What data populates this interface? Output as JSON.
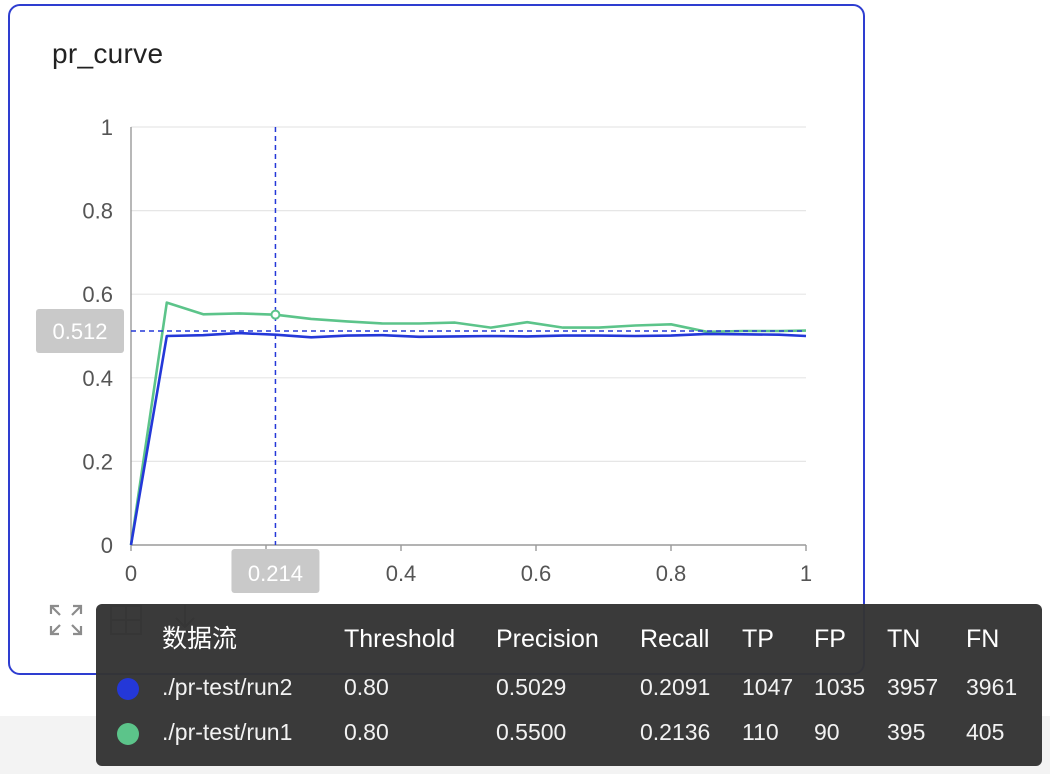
{
  "card": {
    "title": "pr_curve"
  },
  "toolbar": {
    "icons": [
      "expand-icon",
      "fit-icon",
      "download-icon"
    ]
  },
  "chart_data": {
    "type": "line",
    "title": "pr_curve",
    "xlabel": "",
    "ylabel": "",
    "xlim": [
      0,
      1
    ],
    "ylim": [
      0,
      1
    ],
    "x_ticks": [
      "0",
      "0.2",
      "0.4",
      "0.6",
      "0.8",
      "1"
    ],
    "y_ticks": [
      "0",
      "0.2",
      "0.4",
      "0.6",
      "0.8",
      "1"
    ],
    "grid": true,
    "series": [
      {
        "name": "./pr-test/run1",
        "color": "#5cc48a",
        "x": [
          0,
          0.053,
          0.107,
          0.16,
          0.214,
          0.267,
          0.32,
          0.373,
          0.427,
          0.48,
          0.533,
          0.587,
          0.64,
          0.693,
          0.747,
          0.8,
          0.853,
          0.907,
          0.96,
          1
        ],
        "y": [
          0,
          0.58,
          0.552,
          0.554,
          0.551,
          0.541,
          0.535,
          0.53,
          0.53,
          0.532,
          0.52,
          0.533,
          0.52,
          0.52,
          0.525,
          0.528,
          0.51,
          0.512,
          0.512,
          0.513
        ]
      },
      {
        "name": "./pr-test/run2",
        "color": "#2438d8",
        "x": [
          0,
          0.053,
          0.107,
          0.16,
          0.214,
          0.267,
          0.32,
          0.373,
          0.427,
          0.48,
          0.533,
          0.587,
          0.64,
          0.693,
          0.747,
          0.8,
          0.853,
          0.907,
          0.96,
          1
        ],
        "y": [
          0,
          0.5,
          0.502,
          0.507,
          0.503,
          0.497,
          0.501,
          0.502,
          0.498,
          0.499,
          0.5,
          0.499,
          0.501,
          0.501,
          0.5,
          0.501,
          0.505,
          0.504,
          0.503,
          0.5
        ]
      }
    ],
    "crosshair": {
      "x": 0.214,
      "y": 0.512,
      "x_label": "0.214",
      "y_label": "0.512"
    },
    "legend": "none"
  },
  "tooltip": {
    "headers": [
      "数据流",
      "Threshold",
      "Precision",
      "Recall",
      "TP",
      "FP",
      "TN",
      "FN"
    ],
    "rows": [
      {
        "color": "#2438d8",
        "cells": [
          "./pr-test/run2",
          "0.80",
          "0.5029",
          "0.2091",
          "1047",
          "1035",
          "3957",
          "3961"
        ]
      },
      {
        "color": "#5cc48a",
        "cells": [
          "./pr-test/run1",
          "0.80",
          "0.5500",
          "0.2136",
          "110",
          "90",
          "395",
          "405"
        ]
      }
    ]
  }
}
